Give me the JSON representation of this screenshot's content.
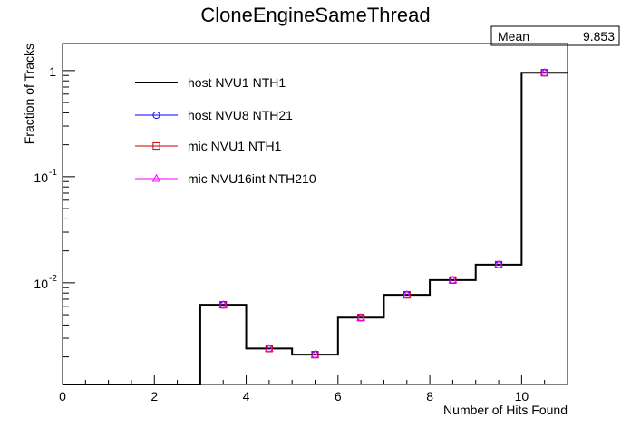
{
  "chart_data": {
    "type": "line",
    "title": "CloneEngineSameThread",
    "xlabel": "Number of Hits Found",
    "ylabel": "Fraction of Tracks",
    "xlim": [
      0,
      11
    ],
    "ylim": [
      0.0011,
      1.8
    ],
    "yscale": "log",
    "grid": false,
    "legend_position": "top-left",
    "x_ticks": [
      {
        "value": 0,
        "label": "0"
      },
      {
        "value": 2,
        "label": "2"
      },
      {
        "value": 4,
        "label": "4"
      },
      {
        "value": 6,
        "label": "6"
      },
      {
        "value": 8,
        "label": "8"
      },
      {
        "value": 10,
        "label": "10"
      }
    ],
    "y_ticks": [
      {
        "value": 0.01,
        "base": "10",
        "exp": "-2"
      },
      {
        "value": 0.1,
        "base": "10",
        "exp": "-1"
      },
      {
        "value": 1,
        "base": "1",
        "exp": ""
      }
    ],
    "bin_edges": [
      0,
      1,
      2,
      3,
      4,
      5,
      6,
      7,
      8,
      9,
      10,
      11
    ],
    "series": [
      {
        "name": "host NVU1 NTH1",
        "style": "histogram",
        "color": "#000000",
        "values": [
          0,
          0,
          0,
          0.0062,
          0.0024,
          0.0021,
          0.0047,
          0.0077,
          0.0106,
          0.0148,
          0.955
        ]
      },
      {
        "name": "host NVU8 NTH21",
        "style": "circle",
        "color": "#0000ff",
        "values": [
          0,
          0,
          0,
          0.0062,
          0.0024,
          0.0021,
          0.0047,
          0.0077,
          0.0106,
          0.0148,
          0.955
        ]
      },
      {
        "name": "mic NVU1 NTH1",
        "style": "square",
        "color": "#cc0000",
        "values": [
          0,
          0,
          0,
          0.0062,
          0.0024,
          0.0021,
          0.0047,
          0.0077,
          0.0106,
          0.0148,
          0.955
        ]
      },
      {
        "name": "mic NVU16int NTH210",
        "style": "triangle",
        "color": "#ff00ff",
        "values": [
          0,
          0,
          0,
          0.0062,
          0.0024,
          0.0021,
          0.0047,
          0.0077,
          0.0106,
          0.0148,
          0.955
        ]
      }
    ],
    "stats": {
      "label": "Mean",
      "value": "9.853"
    }
  }
}
